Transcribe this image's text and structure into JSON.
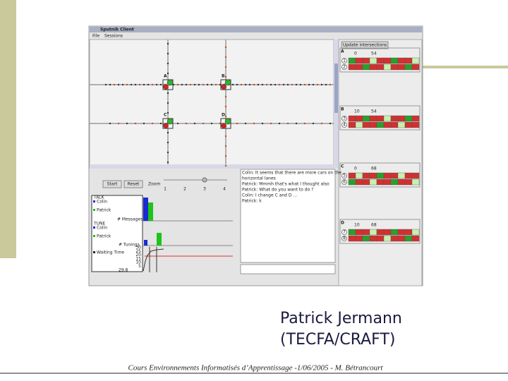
{
  "window": {
    "title": "Sputnik Client",
    "menu": [
      "File",
      "Sessions"
    ]
  },
  "map": {
    "intersections": [
      "A",
      "B",
      "C",
      "D"
    ]
  },
  "side_panel": {
    "button": "Update intersections",
    "panels": [
      {
        "label": "A",
        "numbers": [
          "0",
          "54"
        ],
        "rows": [
          "1",
          "2"
        ]
      },
      {
        "label": "B",
        "numbers": [
          "10",
          "54"
        ],
        "rows": [
          "3",
          "4"
        ]
      },
      {
        "label": "C",
        "numbers": [
          "0",
          "68"
        ],
        "rows": [
          "5",
          "6"
        ]
      },
      {
        "label": "D",
        "numbers": [
          "10",
          "68"
        ],
        "rows": [
          "7",
          "8"
        ]
      }
    ]
  },
  "controls": {
    "start": "Start",
    "reset": "Reset",
    "zoom": "Zoom",
    "zoom_ticks": [
      "1",
      "2",
      "3",
      "4"
    ]
  },
  "monitor": {
    "talk": "TALK",
    "talk_legend": [
      "Colin",
      "Patrick"
    ],
    "messages": "# Messages",
    "tune": "TUNE",
    "tune_legend": [
      "Colin",
      "Patrick"
    ],
    "tunings": "# Tunings",
    "waiting": "Waiting Time",
    "waiting_ticks": [
      "30",
      "25",
      "20",
      "15",
      "10",
      "5"
    ],
    "waiting_value": "29.8"
  },
  "chat": [
    "Colin: It seems that there are more cars on the",
    "horizontal lanes",
    "Patrick: Mmmh that's what I thought also",
    "Patrick: What do you want to do ?",
    "Colin: I change C and D ...",
    "Patrick: k"
  ],
  "caption": [
    "Patrick Jermann",
    "(TECFA/CRAFT)"
  ],
  "footer": "Cours Environnements Informatisés d’Apprentissage -1/06/2005 - M. Bétrancourt"
}
